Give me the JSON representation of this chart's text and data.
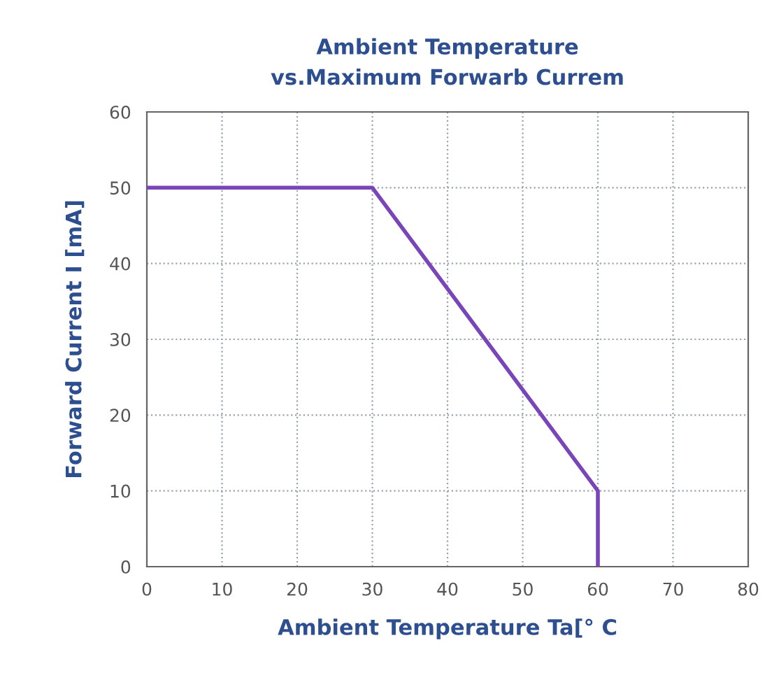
{
  "chart_data": {
    "type": "line",
    "title": "Ambient Temperature\nvs.Maximum Forwarb Currem",
    "xlabel": "Ambient Temperature Ta[° C",
    "ylabel": "Forward Current I [mA]",
    "x": [
      0,
      30,
      60,
      60
    ],
    "series": [
      {
        "color": "#7a45b8",
        "values": [
          50,
          50,
          10,
          0
        ]
      }
    ],
    "xlim": [
      0,
      80
    ],
    "xticks": [
      0,
      10,
      20,
      30,
      40,
      50,
      60,
      70,
      80
    ],
    "ylim": [
      0,
      60
    ],
    "yticks": [
      0,
      10,
      20,
      30,
      40,
      50,
      60
    ],
    "grid": true,
    "marker": "none",
    "line_style": "solid",
    "legend": false
  }
}
